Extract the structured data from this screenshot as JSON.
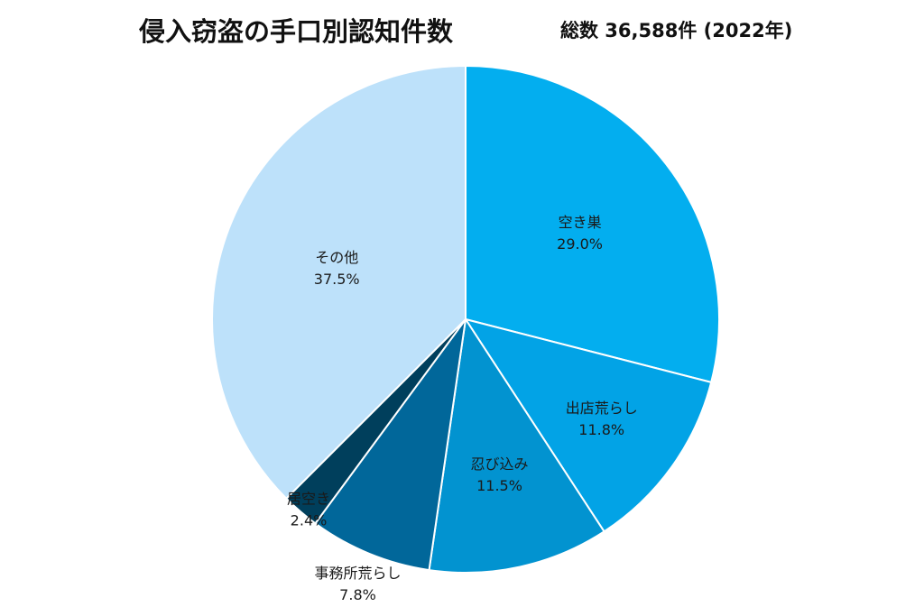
{
  "chart_data": {
    "type": "pie",
    "title": "侵入窃盗の手口別認知件数",
    "subtitle": "総数 36,588件 (2022年)",
    "slices": [
      {
        "label": "空き巣",
        "value": 29.0,
        "value_label": "29.0%",
        "color": "#03AEEF"
      },
      {
        "label": "出店荒らし",
        "value": 11.8,
        "value_label": "11.8%",
        "color": "#02A3E6"
      },
      {
        "label": "忍び込み",
        "value": 11.5,
        "value_label": "11.5%",
        "color": "#0293D0"
      },
      {
        "label": "事務所荒らし",
        "value": 7.8,
        "value_label": "7.8%",
        "color": "#01679A"
      },
      {
        "label": "居空き",
        "value": 2.4,
        "value_label": "2.4%",
        "color": "#003F5C"
      },
      {
        "label": "その他",
        "value": 37.5,
        "value_label": "37.5%",
        "color": "#BDE1FA"
      }
    ],
    "start_angle": "12 o'clock",
    "direction": "clockwise",
    "legend": "none"
  }
}
